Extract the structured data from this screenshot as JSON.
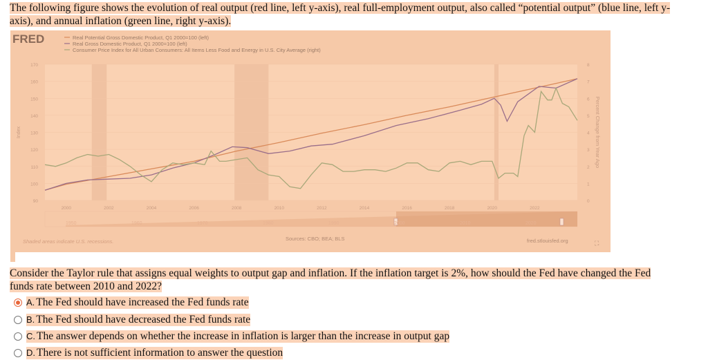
{
  "intro": "The following figure shows the evolution of real output (red line, left y-axis), real full-employment output, also called “potential output” (blue line, left y-axis), and annual inflation (green line, right y-axis).",
  "chart_header": {
    "logo": "FRED",
    "legend": [
      "Real Potential Gross Domestic Product, Q1 2000=100 (left)",
      "Real Gross Domestic Product, Q1 2000=100 (left)",
      "Consumer Price Index for All Urban Consumers: All Items Less Food and Energy in U.S. City Average (right)"
    ],
    "footer_left": "Shaded areas indicate U.S. recessions.",
    "footer_center": "Sources: CBO; BEA; BLS",
    "footer_right": "fred.stlouisfed.org",
    "navigator_ticks": [
      "1950",
      "1960",
      "1970",
      "1980",
      "1990",
      "2000",
      "2010",
      "2020"
    ]
  },
  "chart_data": {
    "type": "line",
    "ylabel": "Index",
    "y2label": "Percent Change from Year Ago",
    "xlim": [
      1999,
      2024
    ],
    "ylim": [
      90,
      170
    ],
    "y2lim": [
      0,
      8
    ],
    "x_ticks": [
      "2000",
      "2002",
      "2004",
      "2006",
      "2008",
      "2010",
      "2012",
      "2014",
      "2016",
      "2018",
      "2020",
      "2022"
    ],
    "y_ticks": [
      "90",
      "100",
      "110",
      "120",
      "130",
      "140",
      "150",
      "160",
      "170"
    ],
    "y2_ticks": [
      "0",
      "1",
      "2",
      "3",
      "4",
      "5",
      "6",
      "7",
      "8"
    ],
    "grid": true,
    "recessions": [
      [
        2001.2,
        2001.9
      ],
      [
        2007.9,
        2009.5
      ],
      [
        2020.1,
        2020.3
      ]
    ],
    "series": [
      {
        "name": "Real Potential Gross Domestic Product, Q1 2000=100 (left)",
        "axis": "left",
        "color": "#d98a5a",
        "x": [
          1999,
          2000,
          2002,
          2004,
          2006,
          2008,
          2010,
          2012,
          2014,
          2016,
          2018,
          2020,
          2022,
          2024
        ],
        "y": [
          96,
          99.5,
          104,
          108.5,
          113,
          119,
          124,
          129.5,
          134.5,
          140,
          145,
          150.5,
          156,
          161.5
        ]
      },
      {
        "name": "Real Gross Domestic Product, Q1 2000=100 (left)",
        "axis": "left",
        "color": "#9a6e8a",
        "x": [
          1999,
          2000,
          2001,
          2002,
          2003,
          2004,
          2005,
          2006,
          2007,
          2007.8,
          2008.5,
          2009.5,
          2010.5,
          2011.5,
          2012.5,
          2014,
          2015.5,
          2017,
          2018.5,
          2019.5,
          2020.1,
          2020.4,
          2020.7,
          2021.2,
          2022.2,
          2023,
          2024
        ],
        "y": [
          96,
          100,
          102,
          102.5,
          103,
          105,
          109,
          112,
          117,
          121.5,
          121,
          117.5,
          119,
          122,
          123,
          128,
          134,
          138,
          143,
          146.5,
          150,
          146,
          136.5,
          148,
          157,
          156,
          161.5
        ]
      },
      {
        "name": "Consumer Price Index for All Urban Consumers: All Items Less Food and Energy in U.S. City Average (right)",
        "axis": "right",
        "color": "#a8a87a",
        "x": [
          1999,
          1999.5,
          2000,
          2000.5,
          2001,
          2001.5,
          2002,
          2002.5,
          2003,
          2003.5,
          2004,
          2004.5,
          2005,
          2005.5,
          2006,
          2006.5,
          2006.8,
          2007.2,
          2007.5,
          2008,
          2008.5,
          2009,
          2009.5,
          2010,
          2010.5,
          2011,
          2011.5,
          2012,
          2012.5,
          2013,
          2013.5,
          2014,
          2014.5,
          2015,
          2015.5,
          2016,
          2016.5,
          2017,
          2017.5,
          2018,
          2018.5,
          2019,
          2019.5,
          2020,
          2020.3,
          2020.6,
          2021,
          2021.2,
          2021.5,
          2021.7,
          2022,
          2022.3,
          2022.6,
          2022.8,
          2023,
          2023.3,
          2023.6,
          2024
        ],
        "y": [
          2.1,
          2.0,
          2.2,
          2.5,
          2.7,
          2.6,
          2.7,
          2.4,
          2.0,
          1.5,
          1.1,
          1.8,
          2.2,
          2.1,
          2.2,
          2.1,
          2.9,
          2.3,
          2.3,
          2.4,
          2.5,
          1.8,
          1.5,
          1.4,
          0.8,
          0.7,
          1.5,
          2.2,
          2.1,
          1.7,
          1.7,
          1.8,
          1.8,
          1.7,
          1.9,
          2.2,
          2.2,
          1.8,
          1.7,
          2.2,
          2.3,
          2.1,
          2.3,
          2.3,
          1.3,
          1.6,
          1.6,
          1.4,
          3.8,
          4.4,
          4.0,
          6.4,
          5.9,
          5.9,
          6.6,
          5.7,
          5.5,
          4.7
        ]
      }
    ]
  },
  "question": "Consider the Taylor rule that assigns equal weights to output gap and inflation.  If the inflation target is 2%, how should the Fed have changed the Fed funds rate between 2010 and 2022?",
  "options": [
    {
      "letter": "A.",
      "text": "The Fed should have increased the Fed funds rate",
      "selected": true
    },
    {
      "letter": "B.",
      "text": "The Fed should have decreased the Fed funds rate",
      "selected": false
    },
    {
      "letter": "C.",
      "text": "The answer depends on whether the increase in inflation is larger than the increase in output gap",
      "selected": false
    },
    {
      "letter": "D.",
      "text": "There is not sufficient information to answer the question",
      "selected": false
    }
  ]
}
